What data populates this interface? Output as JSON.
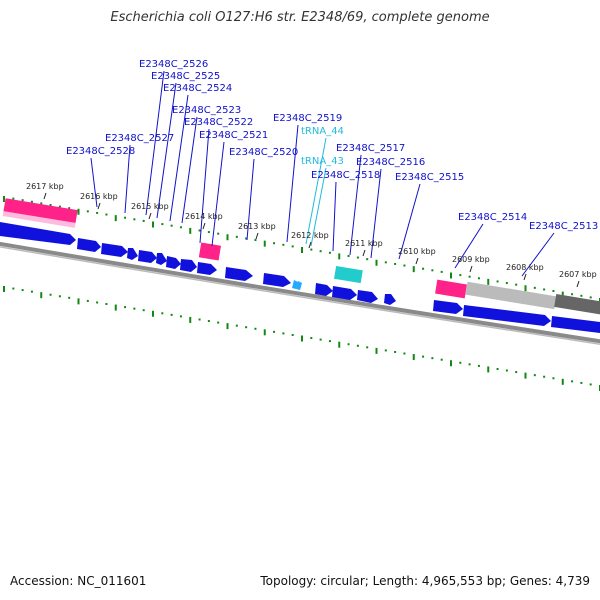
{
  "header": {
    "title": "Escherichia coli O127:H6 str. E2348/69, complete genome"
  },
  "footer": {
    "accession": "Accession: NC_011601",
    "summary": "Topology: circular; Length: 4,965,553 bp; Genes: 4,739"
  },
  "colors": {
    "gene": "#1111dd",
    "trna": "#22cccc",
    "label": "#1111cc",
    "trna_label": "#22bbdd",
    "highlight": "#ff2288",
    "tick": "#118811",
    "backbone": "#777777",
    "gray_block_light": "#bbbbbb",
    "gray_block_dark": "#666666"
  },
  "scale_labels": [
    "2617 kbp",
    "2616 kbp",
    "2615 kbp",
    "2614 kbp",
    "2613 kbp",
    "2612 kbp",
    "2611 kbp",
    "2610 kbp",
    "2609 kbp",
    "2608 kbp",
    "2607 kbp"
  ],
  "gene_labels": [
    {
      "text": "E2348C_2526",
      "kind": "gene"
    },
    {
      "text": "E2348C_2525",
      "kind": "gene"
    },
    {
      "text": "E2348C_2524",
      "kind": "gene"
    },
    {
      "text": "E2348C_2523",
      "kind": "gene"
    },
    {
      "text": "E2348C_2522",
      "kind": "gene"
    },
    {
      "text": "E2348C_2521",
      "kind": "gene"
    },
    {
      "text": "E2348C_2527",
      "kind": "gene"
    },
    {
      "text": "E2348C_2528",
      "kind": "gene"
    },
    {
      "text": "E2348C_2520",
      "kind": "gene"
    },
    {
      "text": "E2348C_2519",
      "kind": "gene"
    },
    {
      "text": "tRNA_44",
      "kind": "trna"
    },
    {
      "text": "tRNA_43",
      "kind": "trna"
    },
    {
      "text": "E2348C_2517",
      "kind": "gene"
    },
    {
      "text": "E2348C_2516",
      "kind": "gene"
    },
    {
      "text": "E2348C_2518",
      "kind": "gene"
    },
    {
      "text": "E2348C_2515",
      "kind": "gene"
    },
    {
      "text": "E2348C_2514",
      "kind": "gene"
    },
    {
      "text": "E2348C_2513",
      "kind": "gene"
    }
  ]
}
